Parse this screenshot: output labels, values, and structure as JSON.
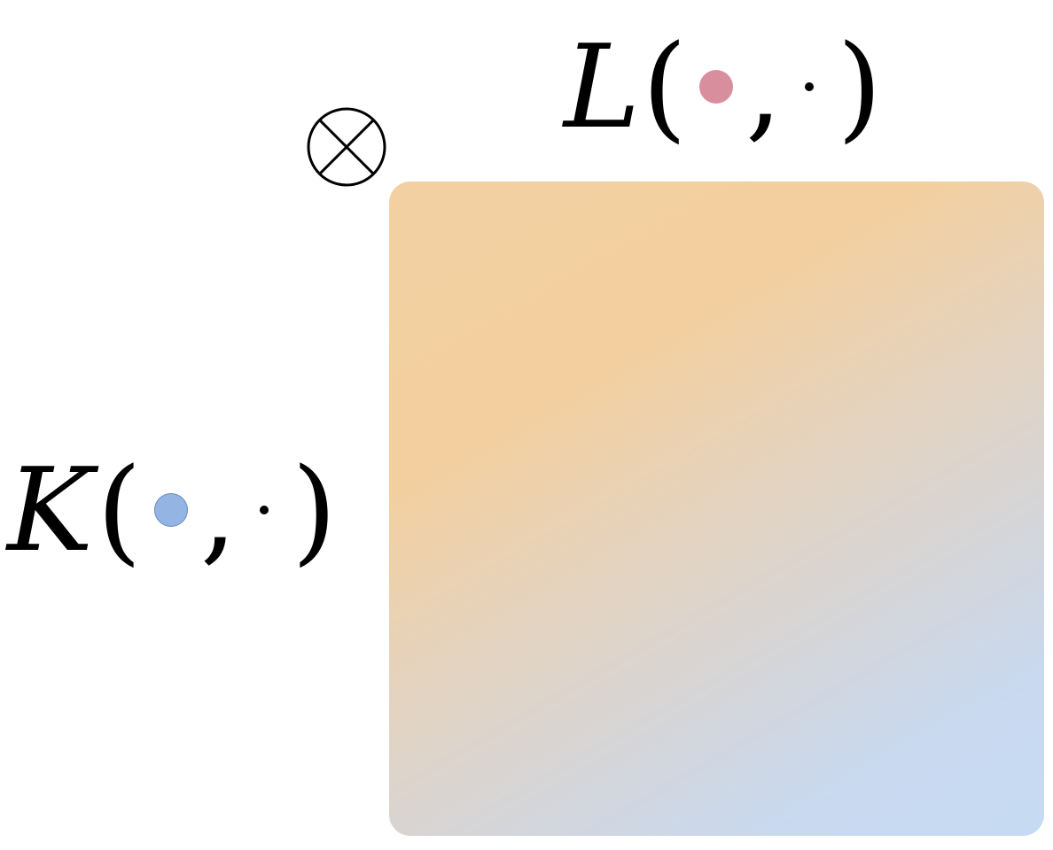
{
  "labels": {
    "top": {
      "symbol": "L",
      "open_paren": "(",
      "comma": ",",
      "close_paren": ")",
      "first_arg_color": "#d98e9e"
    },
    "left": {
      "symbol": "K",
      "open_paren": "(",
      "comma": ",",
      "close_paren": ")",
      "first_arg_color": "#94b4e4"
    }
  },
  "operator": {
    "name": "tensor-product",
    "glyph": "⊗"
  },
  "matrix": {
    "gradient_colors": [
      "#f3d0a2",
      "#e4d3bf",
      "#d5d5d8",
      "#c6daf3"
    ]
  }
}
